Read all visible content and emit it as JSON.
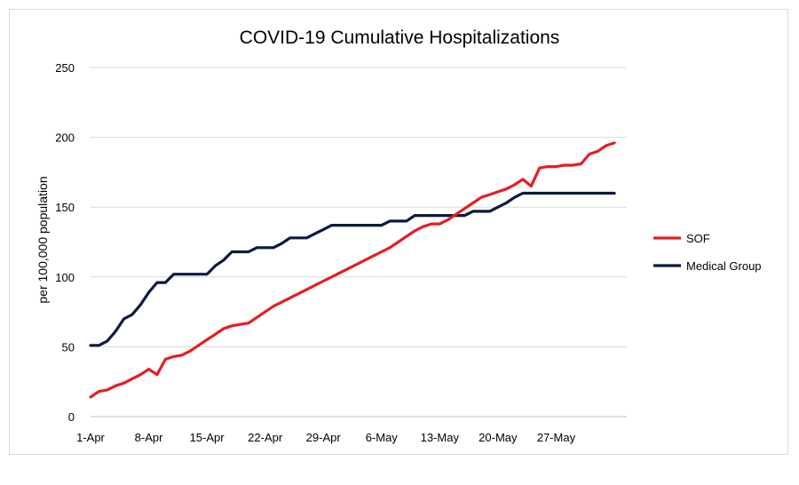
{
  "chart_data": {
    "type": "line",
    "title": "COVID-19 Cumulative Hospitalizations",
    "xlabel": "",
    "ylabel": "per 100,000 population",
    "ylim": [
      0,
      250
    ],
    "yticks": [
      0,
      50,
      100,
      150,
      200,
      250
    ],
    "x_tick_labels": [
      "1-Apr",
      "8-Apr",
      "15-Apr",
      "22-Apr",
      "29-Apr",
      "6-May",
      "13-May",
      "20-May",
      "27-May"
    ],
    "grid": "horizontal",
    "legend_position": "right",
    "x_start": "1-Apr",
    "x_step_days": 1,
    "series": [
      {
        "name": "SOF",
        "color": "#e31e24",
        "values": [
          14,
          18,
          19,
          22,
          24,
          27,
          30,
          34,
          30,
          41,
          43,
          44,
          47,
          51,
          55,
          59,
          63,
          65,
          66,
          67,
          71,
          75,
          79,
          82,
          85,
          88,
          91,
          94,
          97,
          100,
          103,
          106,
          109,
          112,
          115,
          118,
          121,
          125,
          129,
          133,
          136,
          138,
          138,
          141,
          145,
          149,
          153,
          157,
          159,
          161,
          163,
          166,
          170,
          165,
          178,
          179,
          179,
          180,
          180,
          181,
          188,
          190,
          194,
          196
        ]
      },
      {
        "name": "Medical Group",
        "color": "#0d1a3e",
        "values": [
          51,
          51,
          54,
          61,
          70,
          73,
          80,
          89,
          96,
          96,
          102,
          102,
          102,
          102,
          102,
          108,
          112,
          118,
          118,
          118,
          121,
          121,
          121,
          124,
          128,
          128,
          128,
          131,
          134,
          137,
          137,
          137,
          137,
          137,
          137,
          137,
          140,
          140,
          140,
          144,
          144,
          144,
          144,
          144,
          144,
          144,
          147,
          147,
          147,
          150,
          153,
          157,
          160,
          160,
          160,
          160,
          160,
          160,
          160,
          160,
          160,
          160,
          160,
          160
        ]
      }
    ]
  }
}
